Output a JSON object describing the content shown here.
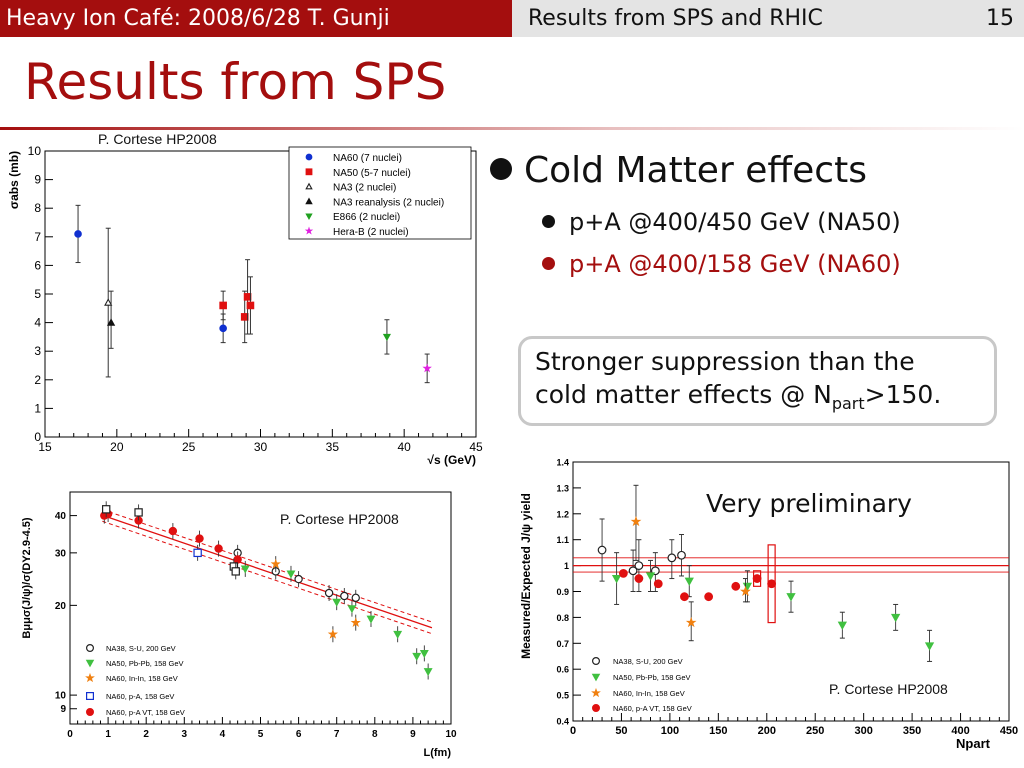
{
  "header": {
    "left_text": "Heavy Ion Café: 2008/6/28 T. Gunji",
    "right_text": "Results from SPS and RHIC",
    "page_number": "15"
  },
  "slide": {
    "title": "Results from SPS",
    "bullet_main": "Cold Matter effects",
    "bullet_sub1": "p+A @400/450 GeV (NA50)",
    "bullet_sub2": "p+A @400/158 GeV (NA60)",
    "callout_line1": "Stronger suppression than the",
    "callout_line2_pre": "cold matter effects @ N",
    "callout_sub": "part",
    "callout_line2_post": ">150.",
    "preliminary_label": "Very preliminary"
  },
  "colors": {
    "accent": "#a40e0e",
    "header_gray": "#e4e4e4",
    "sub2_text": "#a40e0e",
    "callout_border": "#c8c8c8"
  },
  "chart_data": [
    {
      "type": "scatter",
      "credit": "P. Cortese HP2008",
      "ylabel": "σabs (mb)",
      "xlabel": "√s (GeV)",
      "xlim": [
        15,
        45
      ],
      "ylim": [
        0,
        10
      ],
      "x_ticks": [
        "15",
        "20",
        "25",
        "30",
        "35",
        "40",
        "45"
      ],
      "y_ticks": [
        "0",
        "1",
        "2",
        "3",
        "4",
        "5",
        "6",
        "7",
        "8",
        "9",
        "10"
      ],
      "legend_position": "top-right",
      "series": [
        {
          "name": "NA60 (7 nuclei)",
          "marker": "circle",
          "color": "#1030d0",
          "points": [
            [
              17.3,
              7.1,
              6.1,
              8.1
            ],
            [
              27.4,
              3.8,
              3.3,
              4.3
            ]
          ]
        },
        {
          "name": "NA50 (5-7 nuclei)",
          "marker": "square",
          "color": "#e01010",
          "points": [
            [
              27.4,
              4.6,
              4.1,
              5.1
            ],
            [
              28.9,
              4.2,
              3.3,
              5.1
            ],
            [
              29.1,
              4.9,
              3.6,
              6.2
            ],
            [
              29.3,
              4.6,
              3.6,
              5.6
            ]
          ]
        },
        {
          "name": "NA3 (2 nuclei)",
          "marker": "open-triangle",
          "color": "#222222",
          "points": [
            [
              19.4,
              4.7,
              2.1,
              7.3
            ]
          ]
        },
        {
          "name": "NA3 reanalysis (2 nuclei)",
          "marker": "triangle",
          "color": "#111111",
          "points": [
            [
              19.6,
              4.0,
              3.1,
              5.1
            ]
          ]
        },
        {
          "name": "E866 (2 nuclei)",
          "marker": "down-triangle",
          "color": "#20a020",
          "points": [
            [
              38.8,
              3.5,
              2.9,
              4.1
            ]
          ]
        },
        {
          "name": "Hera-B (2 nuclei)",
          "marker": "star",
          "color": "#e020e0",
          "points": [
            [
              41.6,
              2.4,
              1.9,
              2.9
            ]
          ]
        }
      ]
    },
    {
      "type": "scatter",
      "credit": "P. Cortese HP2008",
      "ylabel": "Bμμσ(J/ψ)/σ(DY2.9-4.5)",
      "xlabel": "L(fm)",
      "xlim": [
        0,
        10
      ],
      "y_scale": "log",
      "ylim": [
        8,
        48
      ],
      "x_ticks": [
        "0",
        "1",
        "2",
        "3",
        "4",
        "5",
        "6",
        "7",
        "8",
        "9",
        "10"
      ],
      "y_ticks": [
        "9",
        "10",
        "20",
        "30",
        "40"
      ],
      "legend_position": "bottom-left",
      "fit_band": {
        "at_x1": 39.5,
        "at_x10": 16.0,
        "band_fraction": 0.045
      },
      "series": [
        {
          "name": "NA38, S-U, 200 GeV",
          "marker": "open-circle",
          "color": "#222222",
          "points": [
            [
              4.4,
              30.0
            ],
            [
              5.4,
              26.0
            ],
            [
              6.0,
              24.5
            ],
            [
              6.8,
              22.0
            ],
            [
              7.2,
              21.5
            ],
            [
              7.5,
              21.2
            ]
          ]
        },
        {
          "name": "NA50, Pb-Pb, 158 GeV",
          "marker": "down-triangle",
          "color": "#40c040",
          "points": [
            [
              4.6,
              26.5
            ],
            [
              5.8,
              25.5
            ],
            [
              7.0,
              20.5
            ],
            [
              7.4,
              19.5
            ],
            [
              7.9,
              18.0
            ],
            [
              8.6,
              16.0
            ],
            [
              9.1,
              13.5
            ],
            [
              9.3,
              13.8
            ],
            [
              9.4,
              12.0
            ]
          ]
        },
        {
          "name": "NA60, In-In, 158 GeV",
          "marker": "star",
          "color": "#f08010",
          "points": [
            [
              5.4,
              27.5
            ],
            [
              6.9,
              16.0
            ],
            [
              7.5,
              17.5
            ]
          ]
        },
        {
          "name": "NA60, p-A, 158 GeV",
          "marker": "open-square",
          "color": "#1030d0",
          "points": [
            [
              3.35,
              30.0
            ]
          ]
        },
        {
          "name": "NA60, p-A VT, 158 GeV",
          "marker": "circle",
          "color": "#e01010",
          "points": [
            [
              0.9,
              40.0
            ],
            [
              1.0,
              40.5
            ],
            [
              1.8,
              38.5
            ],
            [
              2.7,
              35.5
            ],
            [
              3.4,
              33.5
            ],
            [
              3.9,
              31.0
            ],
            [
              4.4,
              28.5
            ]
          ]
        },
        {
          "name": "",
          "marker": "open-square",
          "color": "#222222",
          "points": [
            [
              0.95,
              42.0
            ],
            [
              1.8,
              41.0
            ],
            [
              4.3,
              27.0
            ],
            [
              4.35,
              26.0
            ]
          ]
        }
      ]
    },
    {
      "type": "scatter",
      "credit": "P. Cortese HP2008",
      "ylabel": "Measured/Expected J/ψ yield",
      "xlabel": "Npart",
      "xlim": [
        0,
        450
      ],
      "ylim": [
        0.4,
        1.4
      ],
      "x_ticks": [
        "0",
        "50",
        "100",
        "150",
        "200",
        "250",
        "300",
        "350",
        "400",
        "450"
      ],
      "y_ticks": [
        "0.4",
        "0.5",
        "0.6",
        "0.7",
        "0.8",
        "0.9",
        "1",
        "1.1",
        "1.2",
        "1.3",
        "1.4"
      ],
      "legend_position": "bottom-left",
      "reference_line": {
        "value": 1.0,
        "band": [
          0.975,
          1.03
        ]
      },
      "series": [
        {
          "name": "NA38, S-U, 200 GeV",
          "marker": "open-circle",
          "color": "#222222",
          "points": [
            [
              30,
              1.06,
              0.94,
              1.18
            ],
            [
              62,
              0.98,
              0.9,
              1.06
            ],
            [
              68,
              1.0,
              0.9,
              1.1
            ],
            [
              85,
              0.98,
              0.9,
              1.05
            ],
            [
              102,
              1.03,
              0.95,
              1.1
            ],
            [
              112,
              1.04,
              0.96,
              1.12
            ]
          ]
        },
        {
          "name": "NA50, Pb-Pb, 158 GeV",
          "marker": "down-triangle",
          "color": "#40c040",
          "points": [
            [
              45,
              0.95,
              0.85,
              1.05
            ],
            [
              80,
              0.96,
              0.9,
              1.02
            ],
            [
              120,
              0.94,
              0.88,
              1.0
            ],
            [
              180,
              0.92,
              0.86,
              0.98
            ],
            [
              225,
              0.88,
              0.82,
              0.94
            ],
            [
              278,
              0.77,
              0.72,
              0.82
            ],
            [
              333,
              0.8,
              0.75,
              0.85
            ],
            [
              368,
              0.69,
              0.63,
              0.75
            ]
          ]
        },
        {
          "name": "NA60, In-In, 158 GeV",
          "marker": "star",
          "color": "#f08010",
          "points": [
            [
              65,
              1.17,
              1.02,
              1.31
            ],
            [
              122,
              0.78,
              0.71,
              0.86
            ],
            [
              178,
              0.9,
              0.86,
              0.95
            ]
          ]
        },
        {
          "name": "NA60, p-A VT, 158 GeV",
          "marker": "circle",
          "color": "#e01010",
          "points": [
            [
              52,
              0.97
            ],
            [
              68,
              0.95
            ],
            [
              88,
              0.93
            ],
            [
              115,
              0.88
            ],
            [
              140,
              0.88
            ],
            [
              168,
              0.92
            ],
            [
              190,
              0.95
            ],
            [
              205,
              0.93
            ]
          ]
        }
      ],
      "boxes": [
        {
          "x": 205,
          "y_low": 0.78,
          "y_high": 1.08,
          "color": "#e01010"
        },
        {
          "x": 190,
          "y_low": 0.92,
          "y_high": 0.98,
          "color": "#e01010"
        }
      ]
    }
  ]
}
